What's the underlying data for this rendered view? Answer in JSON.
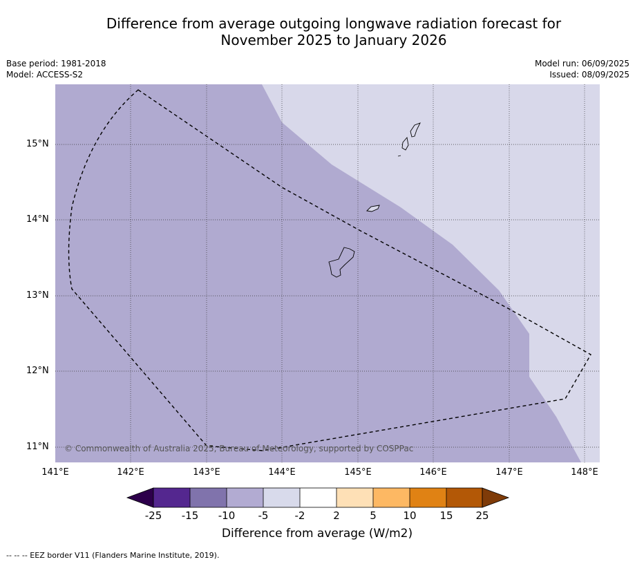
{
  "title_line1": "Difference from average outgoing longwave radiation forecast for",
  "title_line2": "November 2025 to January 2026",
  "meta_left": [
    "Base period: 1981-2018",
    "Model: ACCESS-S2"
  ],
  "meta_right": [
    "Model run: 06/09/2025",
    "Issued: 08/09/2025"
  ],
  "map": {
    "lon_range": [
      141.0,
      148.2
    ],
    "lat_range": [
      10.8,
      15.8
    ],
    "x_ticks": [
      "141°E",
      "142°E",
      "143°E",
      "144°E",
      "145°E",
      "146°E",
      "147°E",
      "148°E"
    ],
    "y_ticks": [
      "15°N",
      "14°N",
      "13°N",
      "12°N",
      "11°N"
    ],
    "regions": [
      {
        "category": "-10 to -5",
        "color": "#b0aad0"
      },
      {
        "category": "-5 to -2",
        "color": "#d8d8ea"
      }
    ],
    "copyright": "© Commonwealth of Australia 2025, Bureau of Meteorology, supported by COSPPac"
  },
  "colorbar": {
    "labels": [
      "-25",
      "-15",
      "-10",
      "-5",
      "-2",
      "2",
      "5",
      "10",
      "15",
      "25"
    ],
    "colors": [
      "#54278f",
      "#8073ac",
      "#b2abd2",
      "#d8daeb",
      "#ffffff",
      "#fee0b6",
      "#fdb863",
      "#e08214",
      "#b35806"
    ],
    "low_extend_color": "#2d004b",
    "high_extend_color": "#7f3b08",
    "title": "Difference from average (W/m2)"
  },
  "footnote": "--  --  -- EEZ border V11 (Flanders Marine Institute, 2019)."
}
